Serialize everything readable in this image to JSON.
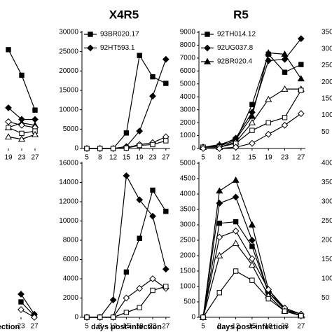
{
  "chart_data": [
    {
      "type": "line",
      "categories": [
        "19",
        "23",
        "27"
      ],
      "ylim": [
        0,
        100
      ],
      "series": [
        {
          "marker": "square",
          "filled": true,
          "values": [
            85,
            63,
            33
          ]
        },
        {
          "marker": "diamond",
          "filled": true,
          "values": [
            35,
            25,
            25
          ]
        },
        {
          "marker": "triangle",
          "filled": true,
          "values": [
            18,
            22,
            20
          ]
        },
        {
          "marker": "diamond",
          "filled": false,
          "values": [
            23,
            20,
            18
          ]
        },
        {
          "marker": "square",
          "filled": false,
          "values": [
            18,
            13,
            15
          ]
        },
        {
          "marker": "triangle",
          "filled": false,
          "values": [
            10,
            8,
            12
          ]
        }
      ]
    },
    {
      "type": "line",
      "categories": [
        "23",
        "27"
      ],
      "ylim": [
        0,
        100
      ],
      "x_label": "ection",
      "series": [
        {
          "marker": "diamond",
          "filled": true,
          "values": [
            15,
            2
          ]
        },
        {
          "marker": "square",
          "filled": true,
          "values": [
            10,
            1
          ]
        },
        {
          "marker": "diamond",
          "filled": false,
          "values": [
            5,
            0
          ]
        }
      ]
    },
    {
      "type": "line",
      "title": "X4R5",
      "categories": [
        "5",
        "8",
        "12",
        "15",
        "19",
        "23",
        "27"
      ],
      "ylim": [
        0,
        30000
      ],
      "yticks": [
        0,
        5000,
        10000,
        15000,
        20000,
        25000,
        30000
      ],
      "legend": "upper left",
      "series": [
        {
          "name": "93BR020.17",
          "marker": "square",
          "filled": true,
          "values": [
            0,
            0,
            0,
            4000,
            24000,
            18500,
            16800
          ]
        },
        {
          "name": "92HT593.1",
          "marker": "diamond",
          "filled": true,
          "values": [
            0,
            0,
            0,
            500,
            4500,
            13500,
            23000
          ]
        },
        {
          "marker": "diamond",
          "filled": false,
          "values": [
            0,
            0,
            0,
            200,
            1000,
            1500,
            3000
          ]
        },
        {
          "marker": "square",
          "filled": false,
          "values": [
            0,
            0,
            0,
            100,
            800,
            1000,
            2000
          ]
        }
      ]
    },
    {
      "type": "line",
      "x_label": "days post-infection",
      "categories": [
        "5",
        "8",
        "12",
        "15",
        "19",
        "23",
        "27"
      ],
      "ylim": [
        0,
        16000
      ],
      "yticks": [
        0,
        2000,
        4000,
        6000,
        8000,
        10000,
        12000,
        14000,
        16000
      ],
      "series": [
        {
          "marker": "square",
          "filled": true,
          "values": [
            0,
            0,
            0,
            4700,
            8200,
            13200,
            11000
          ]
        },
        {
          "marker": "diamond",
          "filled": true,
          "values": [
            0,
            0,
            1800,
            14700,
            12200,
            10500,
            5000
          ]
        },
        {
          "marker": "diamond",
          "filled": false,
          "values": [
            0,
            0,
            0,
            2000,
            3000,
            4000,
            3000
          ]
        },
        {
          "marker": "square",
          "filled": false,
          "values": [
            0,
            0,
            0,
            500,
            1000,
            2800,
            3200
          ]
        }
      ]
    },
    {
      "type": "line",
      "title": "R5",
      "categories": [
        "5",
        "8",
        "12",
        "15",
        "19",
        "23",
        "27"
      ],
      "ylim": [
        0,
        9000
      ],
      "yticks": [
        0,
        1000,
        2000,
        3000,
        4000,
        5000,
        6000,
        7000,
        8000,
        9000
      ],
      "legend": "upper left",
      "series": [
        {
          "name": "92TH014.12",
          "marker": "square",
          "filled": true,
          "values": [
            100,
            200,
            600,
            3400,
            7300,
            5900,
            6500
          ]
        },
        {
          "name": "92UG037.8",
          "marker": "diamond",
          "filled": true,
          "values": [
            100,
            200,
            800,
            2800,
            6800,
            6900,
            8500
          ]
        },
        {
          "name": "92BR020.4",
          "marker": "triangle",
          "filled": true,
          "values": [
            100,
            300,
            700,
            2500,
            7400,
            7300,
            5400
          ]
        },
        {
          "marker": "triangle",
          "filled": false,
          "values": [
            100,
            100,
            500,
            2000,
            3800,
            4600,
            4600
          ]
        },
        {
          "marker": "square",
          "filled": false,
          "values": [
            100,
            100,
            400,
            1400,
            2000,
            2400,
            4500
          ]
        },
        {
          "marker": "diamond",
          "filled": false,
          "values": [
            0,
            0,
            100,
            400,
            1100,
            1800,
            2700
          ]
        }
      ]
    },
    {
      "type": "line",
      "x_label": "days post-infection",
      "categories": [
        "5",
        "8",
        "12",
        "15",
        "19",
        "23",
        "27"
      ],
      "ylim": [
        0,
        5000
      ],
      "yticks": [
        0,
        500,
        1000,
        1500,
        2000,
        2500,
        3000,
        3500,
        4000,
        4500,
        5000
      ],
      "series": [
        {
          "marker": "triangle",
          "filled": true,
          "values": [
            0,
            4100,
            4450,
            3000,
            900,
            250,
            100
          ]
        },
        {
          "marker": "diamond",
          "filled": true,
          "values": [
            0,
            3700,
            3900,
            2500,
            800,
            300,
            100
          ]
        },
        {
          "marker": "square",
          "filled": true,
          "values": [
            0,
            3050,
            3100,
            2300,
            800,
            250,
            50
          ]
        },
        {
          "marker": "diamond",
          "filled": false,
          "values": [
            0,
            2600,
            2800,
            1900,
            900,
            300,
            100
          ]
        },
        {
          "marker": "triangle",
          "filled": false,
          "values": [
            0,
            2000,
            2400,
            1700,
            700,
            200,
            50
          ]
        },
        {
          "marker": "square",
          "filled": false,
          "values": [
            0,
            800,
            1500,
            1200,
            600,
            200,
            50
          ]
        }
      ]
    },
    {
      "type": "axis",
      "ylim": [
        0,
        350
      ],
      "yticks": [
        50,
        100,
        150,
        200,
        250,
        300,
        350
      ]
    },
    {
      "type": "axis",
      "ylim": [
        0,
        400
      ],
      "yticks": [
        50,
        100,
        150,
        200,
        250,
        300,
        350,
        400
      ]
    }
  ]
}
